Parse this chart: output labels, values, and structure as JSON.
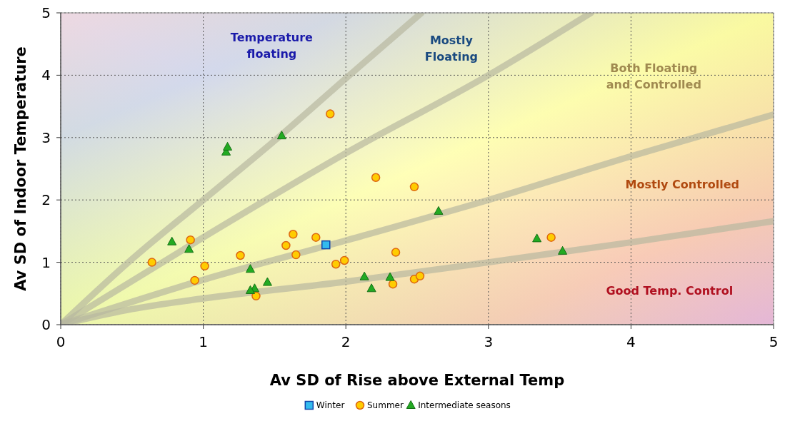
{
  "chart_data": {
    "type": "scatter",
    "xlabel": "Av SD of Rise above External Temp",
    "ylabel": "Av SD of Indoor Temperature",
    "xlim": [
      0,
      5
    ],
    "xticks": [
      0,
      1,
      2,
      3,
      4,
      5
    ],
    "ylim": [
      0,
      5
    ],
    "yticks": [
      0,
      1,
      2,
      3,
      4,
      5
    ],
    "grid": true,
    "legend": "bottom",
    "series": [
      {
        "type": "line",
        "color": "#b8b8a0",
        "x": [
          0,
          0.5,
          1,
          1.5,
          2,
          2.53
        ],
        "values": [
          0,
          1.05,
          2.0,
          2.95,
          3.95,
          5
        ]
      },
      {
        "type": "line",
        "color": "#b8b8a0",
        "x": [
          0,
          1,
          2,
          3,
          3.72
        ],
        "values": [
          0,
          1.4,
          2.75,
          4.0,
          5
        ]
      },
      {
        "type": "line",
        "color": "#b8b8a0",
        "x": [
          0,
          1,
          2,
          3,
          4,
          5
        ],
        "values": [
          0,
          0.72,
          1.35,
          2.0,
          2.7,
          3.37
        ]
      },
      {
        "type": "line",
        "color": "#b8b8a0",
        "x": [
          0,
          0.5,
          1,
          2,
          3,
          4,
          5
        ],
        "values": [
          0,
          0.25,
          0.42,
          0.69,
          1.0,
          1.32,
          1.66
        ]
      },
      {
        "name": "Winter",
        "color": "#33bbee",
        "marker": "square",
        "x": [
          1.86
        ],
        "values": [
          1.28
        ]
      },
      {
        "name": "Summer",
        "color": "#ffcc00",
        "marker": "circle",
        "x": [
          0.64,
          0.91,
          1.01,
          0.94,
          1.26,
          1.37,
          1.58,
          1.63,
          1.65,
          1.79,
          1.93,
          1.99,
          1.89,
          2.21,
          2.48,
          2.35,
          2.33,
          2.48,
          2.52,
          3.44
        ],
        "values": [
          1.0,
          1.36,
          0.94,
          0.71,
          1.11,
          0.46,
          1.27,
          1.45,
          1.12,
          1.4,
          0.97,
          1.03,
          3.38,
          2.36,
          2.21,
          1.16,
          0.65,
          0.73,
          0.78,
          1.4
        ]
      },
      {
        "name": "Intermediate seasons",
        "color": "#22aa22",
        "marker": "triangle",
        "x": [
          0.78,
          0.9,
          1.16,
          1.17,
          1.55,
          1.33,
          1.36,
          1.33,
          1.45,
          2.13,
          2.18,
          2.31,
          2.65,
          3.34,
          3.52
        ],
        "values": [
          1.33,
          1.21,
          2.77,
          2.85,
          3.03,
          0.89,
          0.58,
          0.55,
          0.68,
          0.77,
          0.58,
          0.76,
          1.82,
          1.38,
          1.18
        ]
      }
    ],
    "annotations": [
      "Temperature floating",
      "Mostly Floating",
      "Both Floating and Controlled",
      "Mostly Controlled",
      "Good Temp. Control"
    ]
  }
}
